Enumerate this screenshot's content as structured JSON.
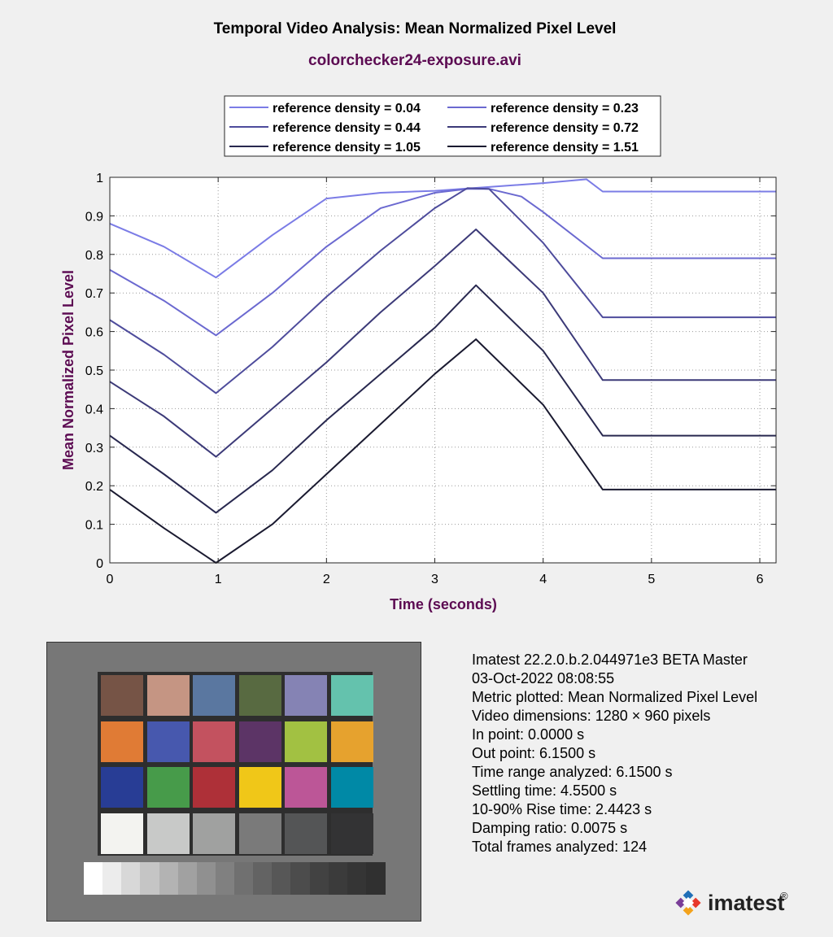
{
  "chart_data": {
    "type": "line",
    "title": "Temporal Video Analysis: Mean Normalized Pixel Level",
    "subtitle": "colorchecker24-exposure.avi",
    "xlabel": "Time (seconds)",
    "ylabel": "Mean Normalized Pixel Level",
    "xlim": [
      0,
      6.15
    ],
    "ylim": [
      0,
      1
    ],
    "xticks": [
      "0",
      "1",
      "2",
      "3",
      "4",
      "5",
      "6"
    ],
    "yticks": [
      "0",
      "0.1",
      "0.2",
      "0.3",
      "0.4",
      "0.5",
      "0.6",
      "0.7",
      "0.8",
      "0.9",
      "1"
    ],
    "grid": "dotted",
    "legend_position": "top",
    "series": [
      {
        "name": "reference density = 0.04",
        "color": "#7b7ce6",
        "points": [
          [
            0,
            0.88
          ],
          [
            0.5,
            0.82
          ],
          [
            0.98,
            0.74
          ],
          [
            1.5,
            0.85
          ],
          [
            2,
            0.945
          ],
          [
            2.5,
            0.96
          ],
          [
            3,
            0.965
          ],
          [
            3.5,
            0.975
          ],
          [
            4,
            0.985
          ],
          [
            4.4,
            0.995
          ],
          [
            4.55,
            0.963
          ],
          [
            6.15,
            0.963
          ]
        ]
      },
      {
        "name": "reference density = 0.23",
        "color": "#6b69d0",
        "points": [
          [
            0,
            0.76
          ],
          [
            0.5,
            0.68
          ],
          [
            0.98,
            0.59
          ],
          [
            1.5,
            0.7
          ],
          [
            2,
            0.82
          ],
          [
            2.5,
            0.92
          ],
          [
            3,
            0.96
          ],
          [
            3.3,
            0.97
          ],
          [
            3.5,
            0.97
          ],
          [
            3.8,
            0.95
          ],
          [
            4,
            0.91
          ],
          [
            4.55,
            0.79
          ],
          [
            6.15,
            0.79
          ]
        ]
      },
      {
        "name": "reference density = 0.44",
        "color": "#4e4c9c",
        "points": [
          [
            0,
            0.63
          ],
          [
            0.5,
            0.54
          ],
          [
            0.98,
            0.44
          ],
          [
            1.5,
            0.56
          ],
          [
            2,
            0.69
          ],
          [
            2.5,
            0.81
          ],
          [
            3,
            0.92
          ],
          [
            3.3,
            0.972
          ],
          [
            3.5,
            0.97
          ],
          [
            4,
            0.83
          ],
          [
            4.55,
            0.637
          ],
          [
            6.15,
            0.637
          ]
        ]
      },
      {
        "name": "reference density = 0.72",
        "color": "#3c3a78",
        "points": [
          [
            0,
            0.47
          ],
          [
            0.5,
            0.38
          ],
          [
            0.98,
            0.275
          ],
          [
            1.5,
            0.4
          ],
          [
            2,
            0.52
          ],
          [
            2.5,
            0.65
          ],
          [
            3,
            0.77
          ],
          [
            3.38,
            0.865
          ],
          [
            4,
            0.7
          ],
          [
            4.55,
            0.474
          ],
          [
            6.15,
            0.474
          ]
        ]
      },
      {
        "name": "reference density = 1.05",
        "color": "#28284f",
        "points": [
          [
            0,
            0.33
          ],
          [
            0.5,
            0.23
          ],
          [
            0.98,
            0.13
          ],
          [
            1.5,
            0.24
          ],
          [
            2,
            0.37
          ],
          [
            2.5,
            0.49
          ],
          [
            3,
            0.61
          ],
          [
            3.38,
            0.72
          ],
          [
            4,
            0.55
          ],
          [
            4.55,
            0.33
          ],
          [
            6.15,
            0.33
          ]
        ]
      },
      {
        "name": "reference density = 1.51",
        "color": "#1a1a30",
        "points": [
          [
            0,
            0.19
          ],
          [
            0.5,
            0.09
          ],
          [
            0.98,
            0.0
          ],
          [
            1.5,
            0.1
          ],
          [
            2,
            0.23
          ],
          [
            2.5,
            0.36
          ],
          [
            3,
            0.49
          ],
          [
            3.38,
            0.58
          ],
          [
            4,
            0.41
          ],
          [
            4.55,
            0.19
          ],
          [
            6.15,
            0.19
          ]
        ]
      }
    ]
  },
  "colorchecker": {
    "background": "#777777",
    "patches": [
      [
        "#765446",
        "#c59583",
        "#5a77a0",
        "#586a41",
        "#8583b4",
        "#64c2ad"
      ],
      [
        "#e07b35",
        "#4758ae",
        "#c3525f",
        "#5c3466",
        "#a2c142",
        "#e6a22e"
      ],
      [
        "#283d95",
        "#479b4a",
        "#ae3038",
        "#f0c718",
        "#bc5697",
        "#0089a6"
      ],
      [
        "#f3f3f0",
        "#c8c9c8",
        "#a0a1a0",
        "#7a7a7a",
        "#545556",
        "#333334"
      ]
    ],
    "strip": [
      "#ffffff",
      "#ececec",
      "#d8d8d8",
      "#c5c5c5",
      "#b3b3b3",
      "#a1a1a1",
      "#909090",
      "#808080",
      "#707070",
      "#636363",
      "#575757",
      "#4c4c4c",
      "#424242",
      "#3b3b3b",
      "#353535",
      "#303030"
    ]
  },
  "info": {
    "lines": [
      "Imatest 22.2.0.b.2.044971e3 BETA Master",
      "03-Oct-2022 08:08:55",
      "Metric plotted: Mean Normalized Pixel Level",
      "Video dimensions: 1280 × 960 pixels",
      "In point: 0.0000 s",
      "Out point: 6.1500 s",
      "Time range analyzed: 6.1500 s",
      "Settling time: 4.5500 s",
      "10-90% Rise time: 2.4423 s",
      "Damping ratio: 0.0075 s",
      "Total frames analyzed: 124"
    ]
  },
  "logo": {
    "text": "imatest",
    "mark": "®",
    "colors": [
      "#1f6fb7",
      "#e8382a",
      "#f3a21b",
      "#7a3e98"
    ]
  }
}
